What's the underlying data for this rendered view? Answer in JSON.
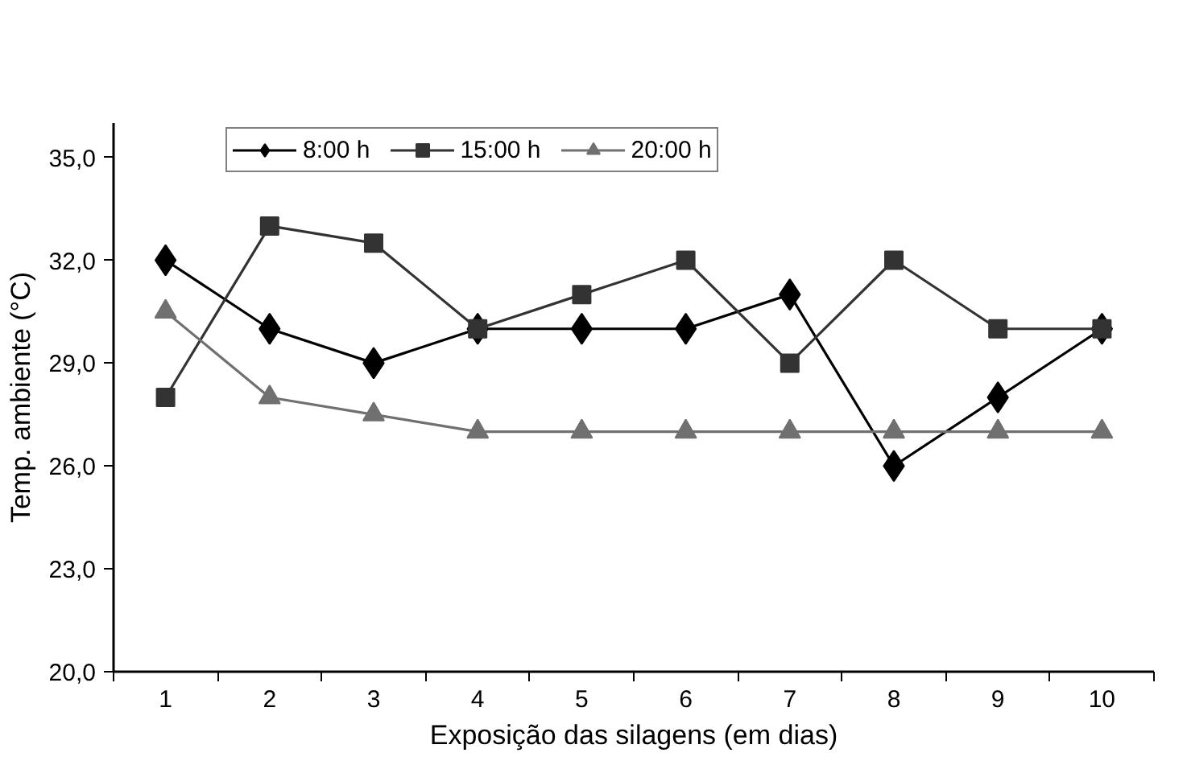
{
  "chart_data": {
    "type": "line",
    "xlabel": "Exposição das silagens (em dias)",
    "ylabel": "Temp. ambiente (°C)",
    "categories": [
      "1",
      "2",
      "3",
      "4",
      "5",
      "6",
      "7",
      "8",
      "9",
      "10"
    ],
    "ylim": [
      20,
      36
    ],
    "yticks": [
      {
        "value": 20,
        "label": "20,0"
      },
      {
        "value": 23,
        "label": "23,0"
      },
      {
        "value": 26,
        "label": "26,0"
      },
      {
        "value": 29,
        "label": "29,0"
      },
      {
        "value": 32,
        "label": "32,0"
      },
      {
        "value": 35,
        "label": "35,0"
      }
    ],
    "grid": false,
    "legend": "top",
    "series": [
      {
        "name": "8:00 h",
        "color": "#000000",
        "marker": "diamond",
        "values": [
          32,
          30,
          29,
          30,
          30,
          30,
          31,
          26,
          28,
          30
        ]
      },
      {
        "name": "15:00 h",
        "color": "#333333",
        "marker": "square",
        "values": [
          28,
          33,
          32.5,
          30,
          31,
          32,
          29,
          32,
          30,
          30
        ]
      },
      {
        "name": "20:00 h",
        "color": "#707070",
        "marker": "triangle",
        "values": [
          30.5,
          28,
          27.5,
          27,
          27,
          27,
          27,
          27,
          27,
          27
        ]
      }
    ]
  }
}
